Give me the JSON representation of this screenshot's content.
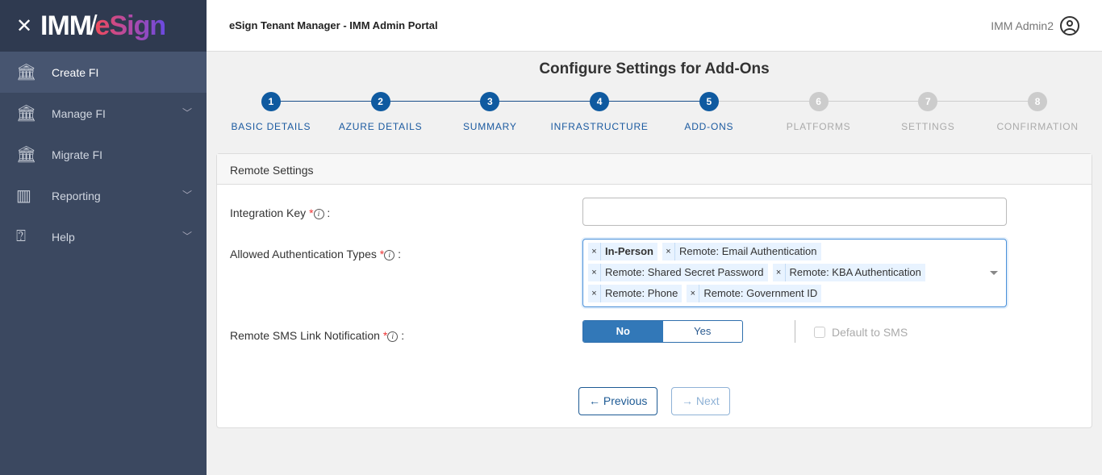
{
  "brand": {
    "close_icon": "close-icon",
    "logo_part1": "IMM",
    "logo_part2": "eSign"
  },
  "sidebar": {
    "items": [
      {
        "label": "Create FI",
        "icon": "bank-plus-icon",
        "active": true,
        "expandable": false
      },
      {
        "label": "Manage FI",
        "icon": "bank-gear-icon",
        "expandable": true
      },
      {
        "label": "Migrate FI",
        "icon": "bank-arrow-icon",
        "expandable": false
      },
      {
        "label": "Reporting",
        "icon": "bar-chart-icon",
        "expandable": true
      },
      {
        "label": "Help",
        "icon": "help-bubble-icon",
        "expandable": true
      }
    ]
  },
  "header": {
    "title": "eSign Tenant Manager - IMM Admin Portal",
    "user": "IMM Admin2"
  },
  "page": {
    "title": "Configure Settings for Add-Ons"
  },
  "steps": [
    {
      "n": "1",
      "label": "BASIC DETAILS",
      "done": true
    },
    {
      "n": "2",
      "label": "AZURE DETAILS",
      "done": true
    },
    {
      "n": "3",
      "label": "SUMMARY",
      "done": true
    },
    {
      "n": "4",
      "label": "INFRASTRUCTURE",
      "done": true
    },
    {
      "n": "5",
      "label": "ADD-ONS",
      "done": true
    },
    {
      "n": "6",
      "label": "PLATFORMS",
      "done": false
    },
    {
      "n": "7",
      "label": "SETTINGS",
      "done": false
    },
    {
      "n": "8",
      "label": "CONFIRMATION",
      "done": false
    }
  ],
  "form": {
    "section": "Remote Settings",
    "integration_key": {
      "label": "Integration Key",
      "value": ""
    },
    "auth_types": {
      "label": "Allowed Authentication Types",
      "selected": [
        "In-Person",
        "Remote: Email Authentication",
        "Remote: Shared Secret Password",
        "Remote: KBA Authentication",
        "Remote: Phone",
        "Remote: Government ID"
      ]
    },
    "sms": {
      "label": "Remote SMS Link Notification",
      "options": [
        "No",
        "Yes"
      ],
      "selected": "No",
      "default_label": "Default to SMS",
      "default_checked": false
    },
    "required_mark": "*",
    "colon": ":",
    "info_glyph": "i",
    "chip_remove": "×"
  },
  "nav": {
    "previous": "← Previous",
    "next": "→ Next"
  }
}
